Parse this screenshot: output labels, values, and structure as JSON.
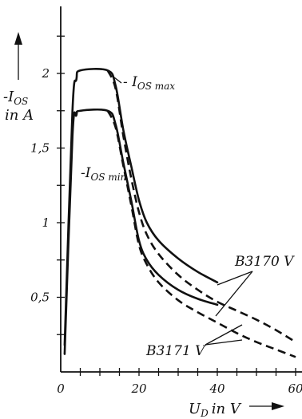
{
  "chart_data": {
    "type": "line",
    "title": "",
    "x_axis": {
      "label": "U_D in V",
      "label_main": "U",
      "label_sub": "D",
      "label_unit": "in V",
      "min": 0,
      "max": 60,
      "ticks": [
        0,
        20,
        40,
        60
      ]
    },
    "y_axis": {
      "label": "-I_OS in A",
      "label_main": "-I",
      "label_sub": "OS",
      "label_unit": "in A",
      "min": 0,
      "max": 2.4,
      "ticks": [
        "0,5",
        "1",
        "1,5",
        "2"
      ],
      "tick_values": [
        0.5,
        1,
        1.5,
        2
      ]
    },
    "annotations": {
      "max": {
        "main": "- I",
        "sub": "OS max"
      },
      "min": {
        "main": "-I",
        "sub": "OS min"
      },
      "b3170": "B3170 V",
      "b3171": "B3171 V"
    },
    "series": [
      {
        "id": "max_solid",
        "style": "solid",
        "x": [
          1,
          3,
          4,
          5,
          12,
          14,
          16,
          18,
          20,
          22,
          25,
          30,
          35,
          40
        ],
        "y": [
          0.18,
          1.75,
          1.96,
          2.02,
          2.02,
          1.92,
          1.62,
          1.38,
          1.15,
          1.0,
          0.88,
          0.76,
          0.67,
          0.6
        ]
      },
      {
        "id": "max_dashed",
        "style": "dashed",
        "x": [
          12,
          14,
          16,
          18,
          20,
          22,
          25,
          30,
          35,
          40,
          45,
          50,
          55,
          60
        ],
        "y": [
          2.02,
          1.9,
          1.58,
          1.3,
          1.07,
          0.92,
          0.79,
          0.65,
          0.55,
          0.47,
          0.41,
          0.35,
          0.28,
          0.2
        ]
      },
      {
        "id": "min_solid",
        "style": "solid",
        "x": [
          1,
          3,
          4,
          5,
          12,
          14,
          16,
          18,
          20,
          22,
          25,
          30,
          35,
          40
        ],
        "y": [
          0.12,
          1.58,
          1.72,
          1.75,
          1.75,
          1.66,
          1.4,
          1.15,
          0.88,
          0.75,
          0.65,
          0.55,
          0.49,
          0.45
        ]
      },
      {
        "id": "min_dashed",
        "style": "dashed",
        "x": [
          12,
          14,
          16,
          18,
          20,
          22,
          25,
          30,
          35,
          40,
          45,
          50,
          55,
          60
        ],
        "y": [
          1.75,
          1.64,
          1.38,
          1.12,
          0.85,
          0.72,
          0.6,
          0.48,
          0.4,
          0.33,
          0.26,
          0.2,
          0.15,
          0.1
        ]
      }
    ],
    "grid": false,
    "legend": "none"
  }
}
